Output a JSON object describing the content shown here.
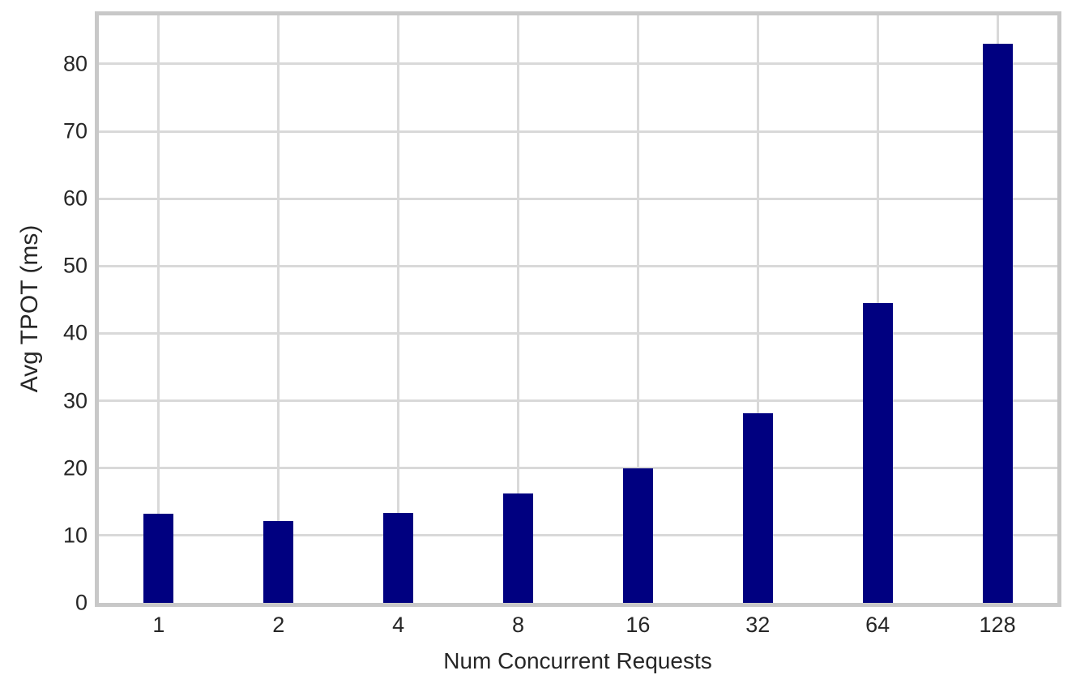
{
  "chart_data": {
    "type": "bar",
    "categories": [
      "1",
      "2",
      "4",
      "8",
      "16",
      "32",
      "64",
      "128"
    ],
    "values": [
      13.2,
      12.2,
      13.4,
      16.2,
      20.0,
      28.1,
      44.5,
      83.0
    ],
    "title": "",
    "xlabel": "Num Concurrent Requests",
    "ylabel": "Avg TPOT (ms)",
    "ylim": [
      0,
      87.2
    ],
    "yticks": [
      0,
      10,
      20,
      30,
      40,
      50,
      60,
      70,
      80
    ],
    "grid": true,
    "grid_axes": "both",
    "legend_position": "none",
    "colors": {
      "bar": "#000080",
      "grid": "#d9d9d9",
      "spine": "#c8c8c8",
      "text": "#262626",
      "background": "#ffffff"
    }
  }
}
